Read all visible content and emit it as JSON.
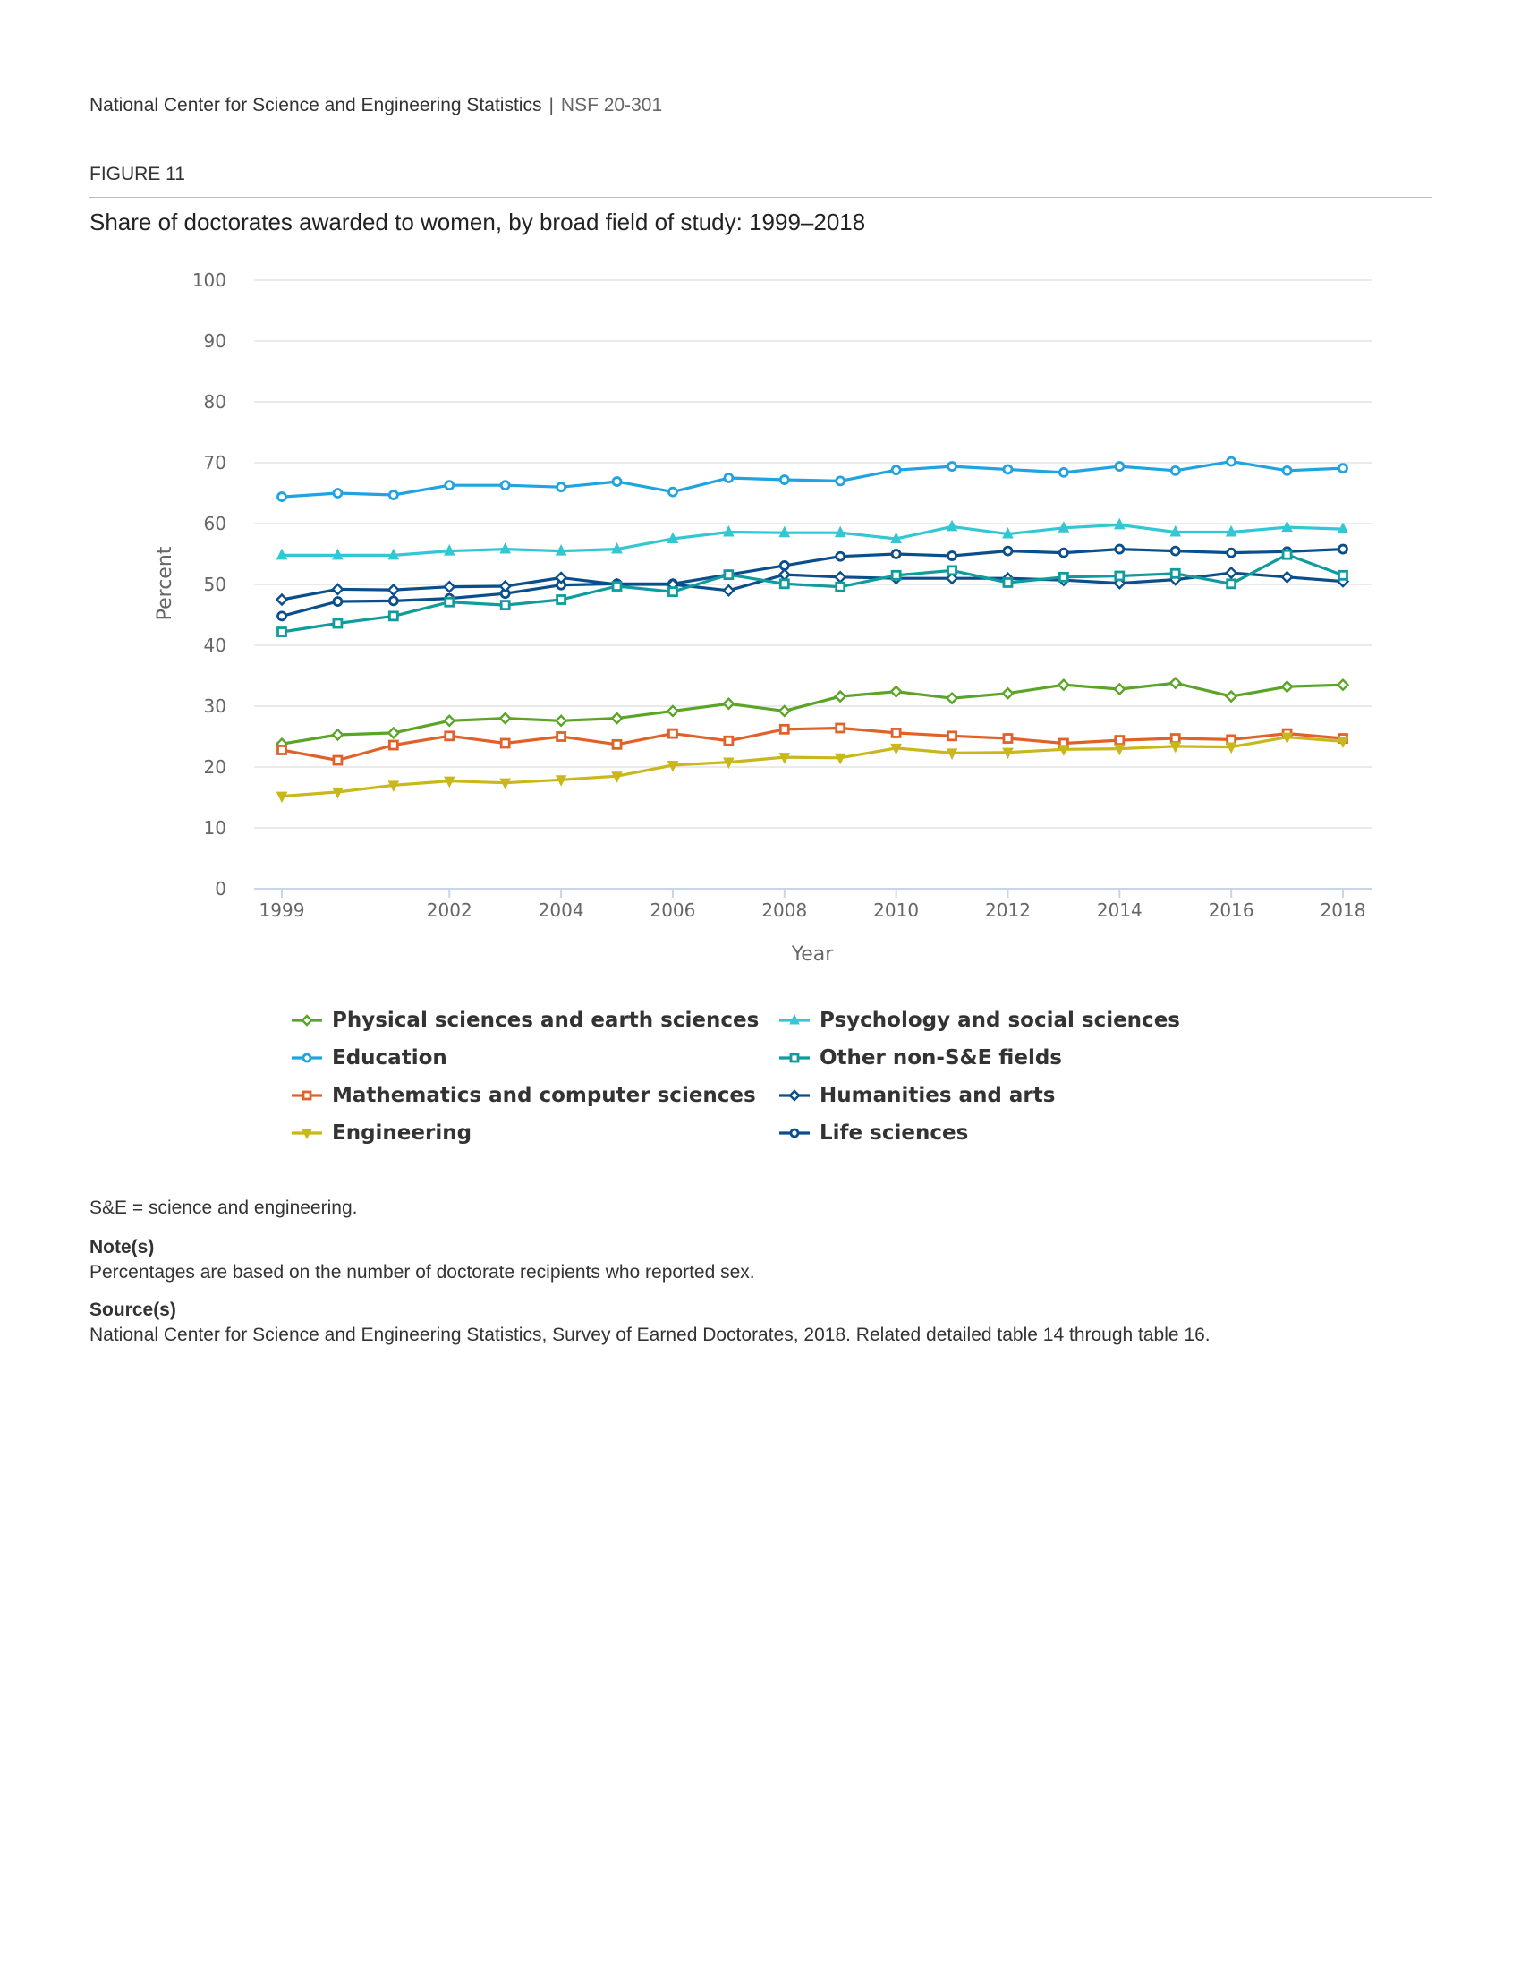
{
  "header": {
    "organization": "National Center for Science and Engineering Statistics",
    "separator": "|",
    "report_id": "NSF 20-301"
  },
  "figure_label": "FIGURE 11",
  "chart_data": {
    "type": "line",
    "title": "Share of doctorates awarded to women, by broad field of study: 1999–2018",
    "xlabel": "Year",
    "ylabel": "Percent",
    "ylim": [
      0,
      100
    ],
    "yticks": [
      0,
      10,
      20,
      30,
      40,
      50,
      60,
      70,
      80,
      90,
      100
    ],
    "xticks": [
      1999,
      2002,
      2004,
      2006,
      2008,
      2010,
      2012,
      2014,
      2016,
      2018
    ],
    "xlim": [
      1999,
      2018
    ],
    "grid": true,
    "legend_position": "bottom",
    "x": [
      1999,
      2000,
      2001,
      2002,
      2003,
      2004,
      2005,
      2006,
      2007,
      2008,
      2009,
      2010,
      2011,
      2012,
      2013,
      2014,
      2015,
      2016,
      2017,
      2018
    ],
    "series": [
      {
        "name": "Life sciences",
        "color": "#0b4e8c",
        "marker": "circle",
        "values": [
          44.8,
          47.2,
          47.3,
          47.7,
          48.5,
          49.9,
          50.1,
          50.1,
          51.6,
          53.1,
          54.6,
          55.0,
          54.7,
          55.5,
          55.2,
          55.8,
          55.5,
          55.2,
          55.4,
          55.8
        ]
      },
      {
        "name": "Physical sciences and earth sciences",
        "color": "#5aa427",
        "marker": "diamond",
        "values": [
          23.8,
          25.3,
          25.6,
          27.6,
          28.0,
          27.6,
          28.0,
          29.2,
          30.4,
          29.2,
          31.6,
          32.4,
          31.3,
          32.1,
          33.5,
          32.8,
          33.8,
          31.6,
          33.2,
          33.5
        ]
      },
      {
        "name": "Mathematics and computer sciences",
        "color": "#e0622a",
        "marker": "square",
        "values": [
          22.8,
          21.1,
          23.6,
          25.1,
          23.9,
          25.0,
          23.7,
          25.5,
          24.3,
          26.2,
          26.4,
          25.6,
          25.1,
          24.7,
          23.9,
          24.4,
          24.7,
          24.5,
          25.5,
          24.7
        ]
      },
      {
        "name": "Psychology and social sciences",
        "color": "#33c7d3",
        "marker": "triangle-up",
        "values": [
          54.8,
          54.8,
          54.8,
          55.5,
          55.8,
          55.5,
          55.8,
          57.5,
          58.6,
          58.5,
          58.5,
          57.5,
          59.5,
          58.3,
          59.3,
          59.8,
          58.6,
          58.6,
          59.4,
          59.1
        ]
      },
      {
        "name": "Engineering",
        "color": "#c9b81b",
        "marker": "triangle-down",
        "values": [
          15.2,
          15.9,
          17.0,
          17.7,
          17.4,
          17.9,
          18.5,
          20.3,
          20.8,
          21.6,
          21.5,
          23.1,
          22.3,
          22.4,
          22.9,
          23.0,
          23.4,
          23.3,
          24.9,
          24.2
        ]
      },
      {
        "name": "Education",
        "color": "#20a3e0",
        "marker": "circle",
        "values": [
          64.4,
          65.0,
          64.7,
          66.3,
          66.3,
          66.0,
          66.9,
          65.2,
          67.5,
          67.2,
          67.0,
          68.8,
          69.4,
          68.9,
          68.4,
          69.4,
          68.7,
          70.2,
          68.7,
          69.1
        ]
      },
      {
        "name": "Humanities and arts",
        "color": "#0b4e8c",
        "marker": "diamond",
        "values": [
          47.5,
          49.2,
          49.1,
          49.6,
          49.7,
          51.1,
          50.0,
          50.0,
          49.0,
          51.6,
          51.2,
          51.0,
          51.0,
          51.0,
          50.7,
          50.2,
          50.8,
          51.9,
          51.2,
          50.5
        ]
      },
      {
        "name": "Other non-S&E fields",
        "color": "#109c9c",
        "marker": "square",
        "values": [
          42.2,
          43.6,
          44.8,
          47.1,
          46.6,
          47.5,
          49.7,
          48.8,
          51.6,
          50.1,
          49.6,
          51.5,
          52.3,
          50.3,
          51.2,
          51.4,
          51.8,
          50.1,
          54.9,
          51.5
        ]
      }
    ]
  },
  "notes": {
    "abbreviation": "S&E = science and engineering.",
    "note_heading": "Note(s)",
    "note_text": "Percentages are based on the number of doctorate recipients who reported sex.",
    "source_heading": "Source(s)",
    "source_text": "National Center for Science and Engineering Statistics, Survey of Earned Doctorates, 2018. Related detailed table 14 through table 16."
  }
}
